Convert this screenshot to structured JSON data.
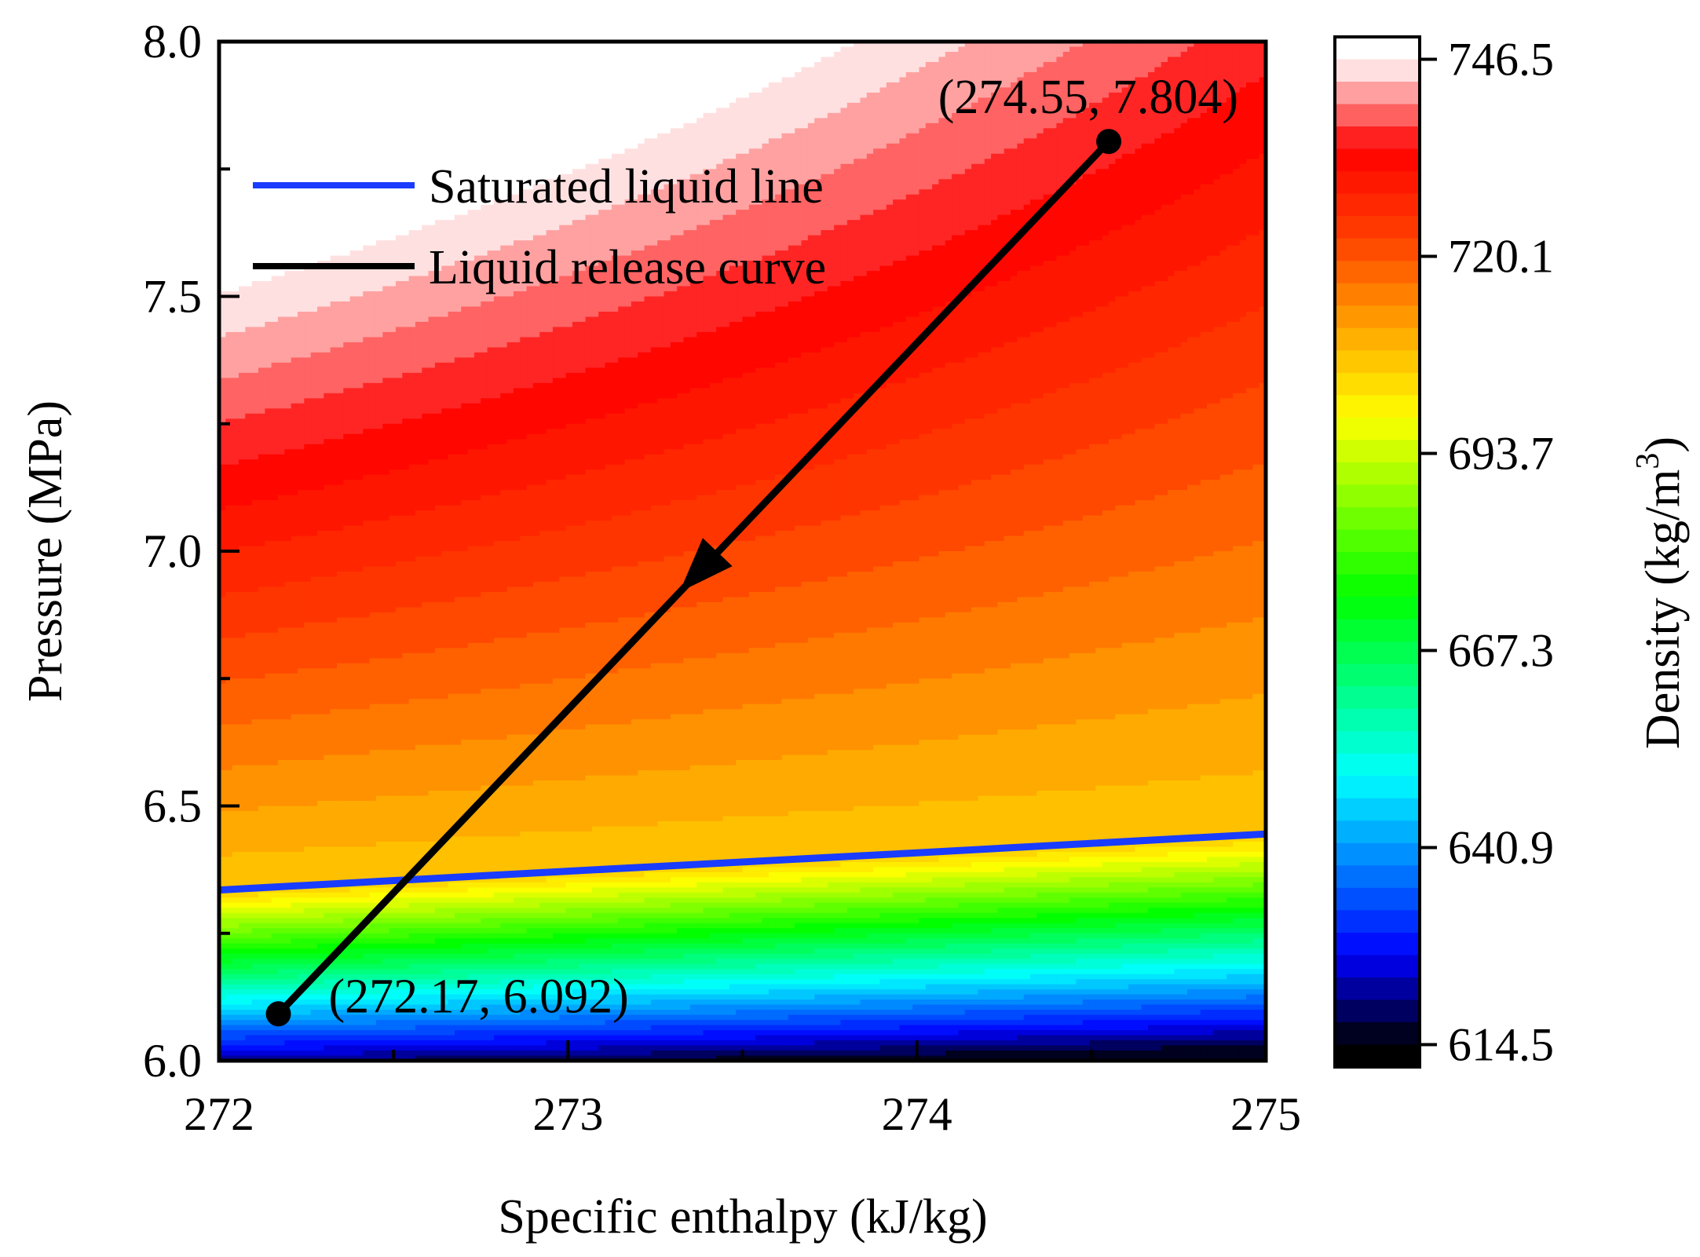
{
  "chart_data": {
    "type": "heatmap",
    "subtype": "filled-contour",
    "xlabel": "Specific enthalpy (kJ/kg)",
    "ylabel": "Pressure (MPa)",
    "xlim": [
      272,
      275
    ],
    "ylim": [
      6.0,
      8.0
    ],
    "x_ticks": [
      272,
      273,
      274,
      275
    ],
    "x_tick_labels": [
      "272",
      "273",
      "274",
      "275"
    ],
    "y_ticks": [
      6.0,
      6.5,
      7.0,
      7.5,
      8.0
    ],
    "y_tick_labels": [
      "6.0",
      "6.5",
      "7.0",
      "7.5",
      "8.0"
    ],
    "colorbar": {
      "label": "Density (kg/m",
      "label_superscript": "3",
      "label_close": ")",
      "range": [
        614.5,
        746.5
      ],
      "ticks": [
        614.5,
        640.9,
        667.3,
        693.7,
        720.1,
        746.5
      ],
      "tick_labels": [
        "614.5",
        "640.9",
        "667.3",
        "693.7",
        "720.1",
        "746.5"
      ],
      "colormap": [
        "#000000",
        "#0000ff",
        "#0080ff",
        "#00ffff",
        "#00ff80",
        "#00ff00",
        "#80ff00",
        "#ffff00",
        "#ffa500",
        "#ff4000",
        "#ff0000",
        "#ffffff"
      ]
    },
    "saturated_liquid_line": {
      "name": "Saturated liquid line",
      "color": "#1a3cff",
      "x": [
        272,
        273,
        274,
        275
      ],
      "y": [
        6.335,
        6.372,
        6.408,
        6.445
      ]
    },
    "liquid_release_curve": {
      "name": "Liquid release curve",
      "color": "#000000",
      "x": [
        274.55,
        272.17
      ],
      "y": [
        7.804,
        6.092
      ],
      "arrow_at": [
        273.32,
        6.92
      ]
    },
    "annotations": [
      {
        "text": "(274.55, 7.804)",
        "x": 274.55,
        "y": 7.804
      },
      {
        "text": "(272.17, 6.092)",
        "x": 272.17,
        "y": 6.092
      }
    ],
    "legend": {
      "position": "top-left",
      "entries": [
        {
          "label": "Saturated liquid line",
          "color": "#1a3cff"
        },
        {
          "label": "Liquid release curve",
          "color": "#000000"
        }
      ]
    }
  }
}
